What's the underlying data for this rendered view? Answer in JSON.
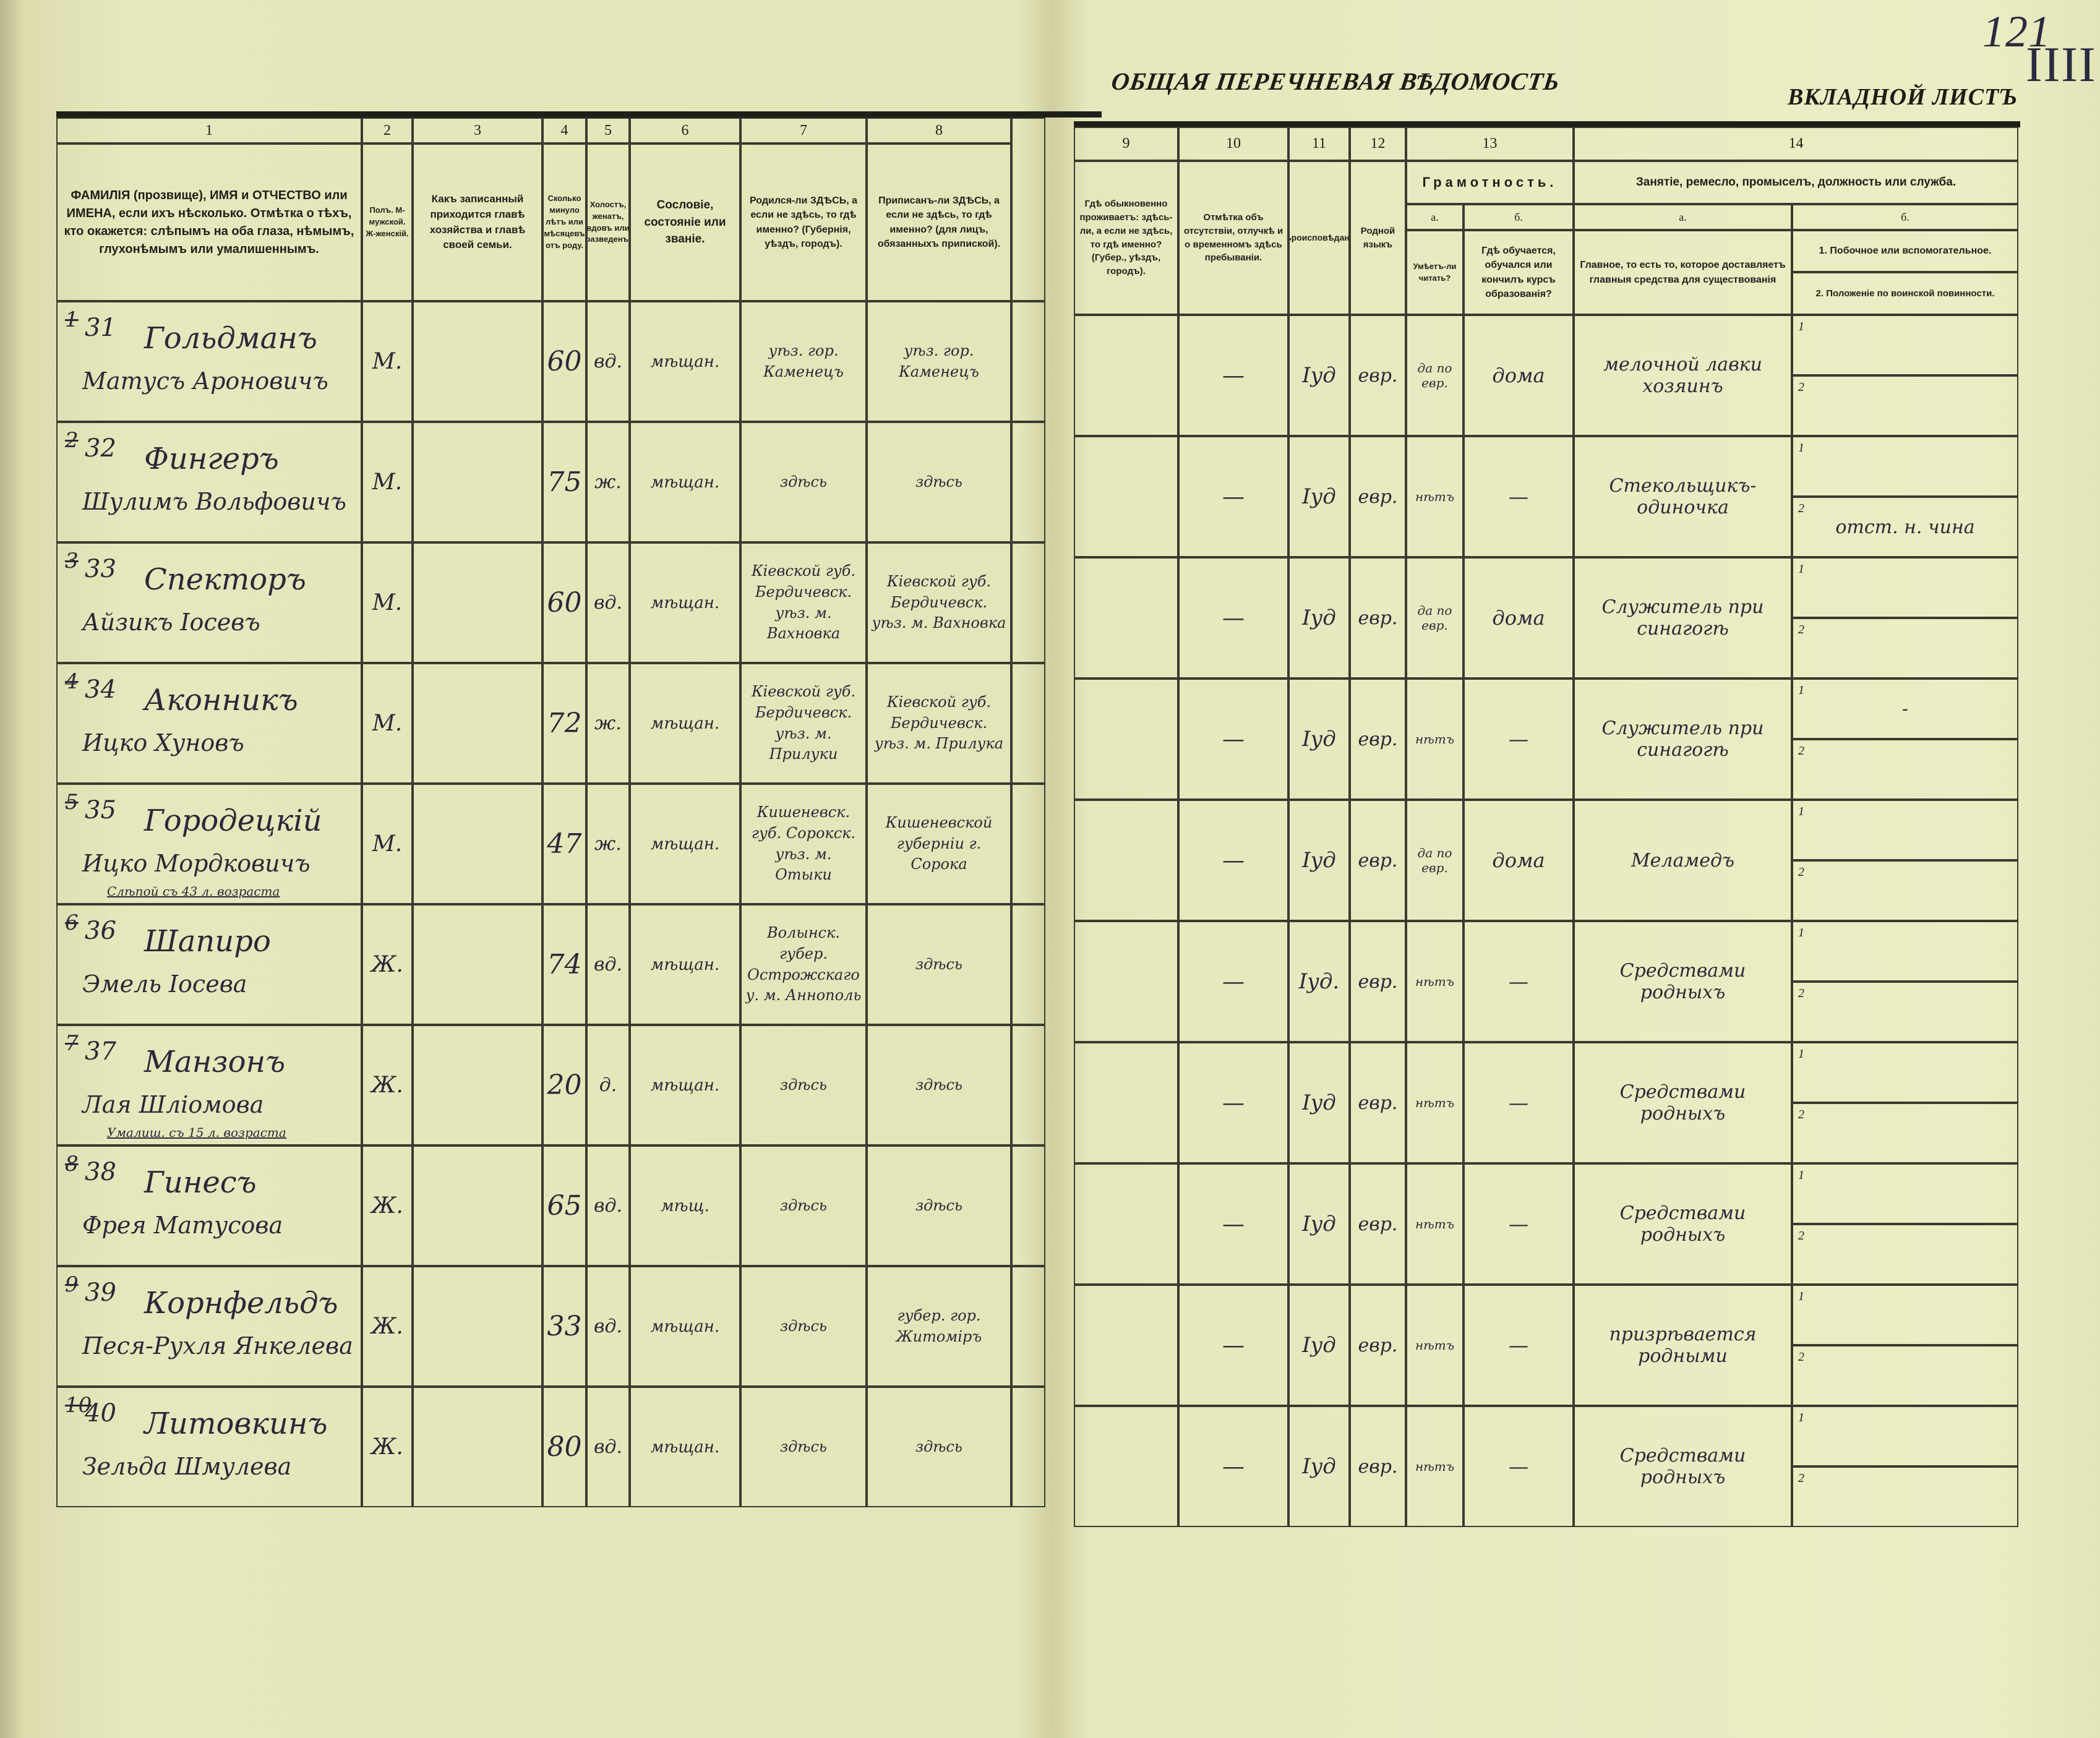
{
  "document": {
    "title": "ОБЩАЯ ПЕРЕЧНЕВАЯ ВѢДОМОСТЬ",
    "sheet_label": "ВКЛАДНОЙ ЛИСТЪ",
    "page_number": "121",
    "tally_marks": "IIII"
  },
  "header": {
    "col_numbers": [
      "1",
      "2",
      "3",
      "4",
      "5",
      "6",
      "7",
      "8",
      "9",
      "10",
      "11",
      "12",
      "13",
      "14"
    ],
    "c1": "ФАМИЛІЯ (прозвище), ИМЯ и ОТЧЕСТВО или ИМЕНА, если ихъ нѣсколько. Отмѣтка о тѣхъ, кто окажется: слѣпымъ на оба глаза, нѣмымъ, глухонѣмымъ или умалишеннымъ.",
    "c2": "Полъ. М-мужской. Ж-женскій.",
    "c3": "Какъ записанный приходится главѣ хозяйства и главѣ своей семьи.",
    "c4": "Сколько минуло лѣтъ или мѣсяцевъ отъ роду.",
    "c5": "Холостъ, женатъ, вдовъ или разведенъ.",
    "c6": "Сословіе, состояніе или званіе.",
    "c7": "Родился-ли ЗДѢСЬ, а если не здѣсь, то гдѣ именно? (Губернія, уѣздъ, городъ).",
    "c8": "Приписанъ-ли ЗДѢСЬ, а если не здѣсь, то гдѣ именно? (для лицъ, обязанныхъ припиской).",
    "c9": "Гдѣ обыкновенно проживаетъ: здѣсь-ли, а если не здѣсь, то гдѣ именно? (Губер., уѣздъ, городъ).",
    "c10": "Отмѣтка объ отсутствіи, отлучкѣ и о временномъ здѣсь пребываніи.",
    "c11": "Вѣроисповѣданіе.",
    "c12": "Родной языкъ",
    "c13": "Грамотность.",
    "c13a": "а.",
    "c13a_text": "Умѣетъ-ли читать?",
    "c13b": "б.",
    "c13b_text": "Гдѣ обучается, обучался или кончилъ курсъ образованія?",
    "c14": "Занятіе, ремесло, промыселъ, должность или служба.",
    "c14a": "а.",
    "c14a_text": "Главное, то есть то, которое доставляетъ главныя средства для существованія",
    "c14b": "б.",
    "c14b_1": "1. Побочное или вспомогательное.",
    "c14b_2": "2. Положеніе по воинской повинности."
  },
  "rows": [
    {
      "mark": "1",
      "no": "31",
      "surname": "Гольдманъ",
      "name": "Матусъ Ароновичъ",
      "note": "",
      "sex": "М.",
      "relation": "",
      "age": "60",
      "marital": "вд.",
      "estate": "мѣщан.",
      "born": "уѣз. гор. Каменецъ",
      "registered": "уѣз. гор. Каменецъ",
      "residence": "",
      "absence": "—",
      "religion": "Іуд",
      "language": "евр.",
      "literate": "да по евр.",
      "education": "дома",
      "occupation": "мелочной лавки хозяинъ",
      "sub1": "",
      "sub2": ""
    },
    {
      "mark": "2",
      "no": "32",
      "surname": "Фингеръ",
      "name": "Шулимъ Вольфовичъ",
      "note": "",
      "sex": "М.",
      "relation": "",
      "age": "75",
      "marital": "ж.",
      "estate": "мѣщан.",
      "born": "здѣсь",
      "registered": "здѣсь",
      "residence": "",
      "absence": "—",
      "religion": "Іуд",
      "language": "евр.",
      "literate": "нѣтъ",
      "education": "—",
      "occupation": "Стекольщикъ-одиночка",
      "sub1": "",
      "sub2": "отст. н. чина"
    },
    {
      "mark": "3",
      "no": "33",
      "surname": "Спекторъ",
      "name": "Айзикъ Іосевъ",
      "note": "",
      "sex": "М.",
      "relation": "",
      "age": "60",
      "marital": "вд.",
      "estate": "мѣщан.",
      "born": "Кіевской губ. Бердичевск. уѣз. м. Вахновка",
      "registered": "Кіевской губ. Бердичевск. уѣз. м. Вахновка",
      "residence": "",
      "absence": "—",
      "religion": "Іуд",
      "language": "евр.",
      "literate": "да по евр.",
      "education": "дома",
      "occupation": "Служитель при синагогѣ",
      "sub1": "",
      "sub2": ""
    },
    {
      "mark": "4",
      "no": "34",
      "surname": "Аконникъ",
      "name": "Ицко Хуновъ",
      "note": "",
      "sex": "М.",
      "relation": "",
      "age": "72",
      "marital": "ж.",
      "estate": "мѣщан.",
      "born": "Кіевской губ. Бердичевск. уѣз. м. Прилуки",
      "registered": "Кіевской губ. Бердичевск. уѣз. м. Прилука",
      "residence": "",
      "absence": "—",
      "religion": "Іуд",
      "language": "евр.",
      "literate": "нѣтъ",
      "education": "—",
      "occupation": "Служитель при синагогѣ",
      "sub1": "-",
      "sub2": ""
    },
    {
      "mark": "5",
      "no": "35",
      "surname": "Городецкій",
      "name": "Ицко Мордковичъ",
      "note": "Слѣпой съ 43 л. возраста",
      "sex": "М.",
      "relation": "",
      "age": "47",
      "marital": "ж.",
      "estate": "мѣщан.",
      "born": "Кишеневск. губ. Сорокск. уѣз. м. Отыки",
      "registered": "Кишеневской губерніи г. Сорока",
      "residence": "",
      "absence": "—",
      "religion": "Іуд",
      "language": "евр.",
      "literate": "да по евр.",
      "education": "дома",
      "occupation": "Меламедъ",
      "sub1": "",
      "sub2": ""
    },
    {
      "mark": "6",
      "no": "36",
      "surname": "Шапиро",
      "name": "Эмель Іосева",
      "note": "",
      "sex": "Ж.",
      "relation": "",
      "age": "74",
      "marital": "вд.",
      "estate": "мѣщан.",
      "born": "Волынск. губер. Острожскаго у. м. Аннополь",
      "registered": "здѣсь",
      "residence": "",
      "absence": "—",
      "religion": "Іуд.",
      "language": "евр.",
      "literate": "нѣтъ",
      "education": "—",
      "occupation": "Средствами родныхъ",
      "sub1": "",
      "sub2": ""
    },
    {
      "mark": "7",
      "no": "37",
      "surname": "Манзонъ",
      "name": "Лая Шліомова",
      "note": "Умалиш. съ 15 л. возраста",
      "sex": "Ж.",
      "relation": "",
      "age": "20",
      "marital": "д.",
      "estate": "мѣщан.",
      "born": "здѣсь",
      "registered": "здѣсь",
      "residence": "",
      "absence": "—",
      "religion": "Іуд",
      "language": "евр.",
      "literate": "нѣтъ",
      "education": "—",
      "occupation": "Средствами родныхъ",
      "sub1": "",
      "sub2": ""
    },
    {
      "mark": "8",
      "no": "38",
      "surname": "Гинесъ",
      "name": "Фрея Матусова",
      "note": "",
      "sex": "Ж.",
      "relation": "",
      "age": "65",
      "marital": "вд.",
      "estate": "мѣщ.",
      "born": "здѣсь",
      "registered": "здѣсь",
      "residence": "",
      "absence": "—",
      "religion": "Іуд",
      "language": "евр.",
      "literate": "нѣтъ",
      "education": "—",
      "occupation": "Средствами родныхъ",
      "sub1": "",
      "sub2": ""
    },
    {
      "mark": "9",
      "no": "39",
      "surname": "Корнфельдъ",
      "name": "Песя-Рухля Янкелева",
      "note": "",
      "sex": "Ж.",
      "relation": "",
      "age": "33",
      "marital": "вд.",
      "estate": "мѣщан.",
      "born": "здѣсь",
      "registered": "губер. гор. Житоміръ",
      "residence": "",
      "absence": "—",
      "religion": "Іуд",
      "language": "евр.",
      "literate": "нѣтъ",
      "education": "—",
      "occupation": "призрѣвается родными",
      "sub1": "",
      "sub2": ""
    },
    {
      "mark": "10",
      "no": "40",
      "surname": "Литовкинъ",
      "name": "Зельда Шмулева",
      "note": "",
      "sex": "Ж.",
      "relation": "",
      "age": "80",
      "marital": "вд.",
      "estate": "мѣщан.",
      "born": "здѣсь",
      "registered": "здѣсь",
      "residence": "",
      "absence": "—",
      "religion": "Іуд",
      "language": "евр.",
      "literate": "нѣтъ",
      "education": "—",
      "occupation": "Средствами родныхъ",
      "sub1": "",
      "sub2": ""
    }
  ],
  "sub_labels": [
    "1",
    "2"
  ]
}
